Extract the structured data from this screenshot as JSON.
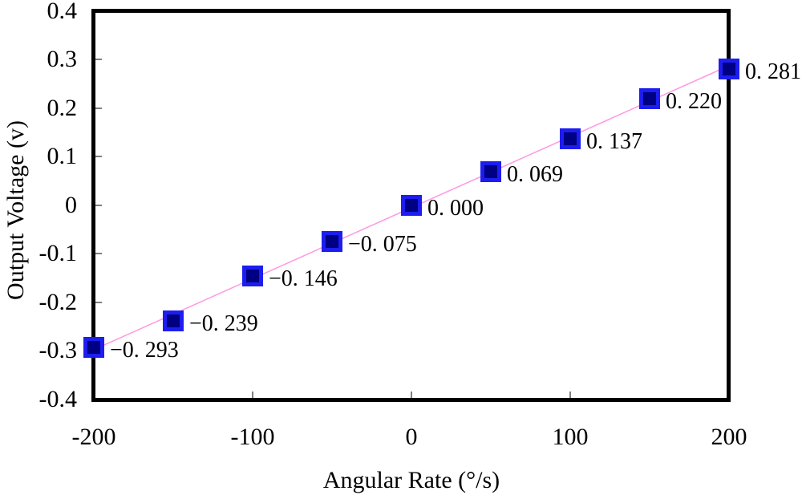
{
  "chart_data": {
    "type": "scatter",
    "title": "",
    "xlabel": "Angular Rate (°/s)",
    "ylabel": "Output Voltage (v)",
    "x": [
      -200,
      -150,
      -100,
      -50,
      0,
      50,
      100,
      150,
      200
    ],
    "y": [
      -0.293,
      -0.239,
      -0.146,
      -0.075,
      0.0,
      0.069,
      0.137,
      0.22,
      0.281
    ],
    "point_labels": [
      "−0. 293",
      "−0. 239",
      "−0. 146",
      "−0. 075",
      "0. 000",
      "0. 069",
      "0. 137",
      "0. 220",
      "0. 281"
    ],
    "xlim": [
      -200,
      200
    ],
    "ylim": [
      -0.4,
      0.4
    ],
    "x_tick_marks": [
      -100,
      0,
      100
    ],
    "y_tick_marks": [
      0.3,
      0.2,
      0.1,
      0,
      -0.1,
      -0.2,
      -0.3
    ],
    "x_tick_label_values": [
      -200,
      -100,
      0,
      100,
      200
    ],
    "x_tick_label_texts": [
      "-200",
      "-100",
      "0",
      "100",
      "200"
    ],
    "y_tick_label_values": [
      0.4,
      0.3,
      0.2,
      0.1,
      0,
      -0.1,
      -0.2,
      -0.3,
      -0.4
    ],
    "y_tick_label_texts": [
      "0.4",
      "0.3",
      "0.2",
      "0.1",
      "0",
      "-0.1",
      "-0.2",
      "-0.3",
      "-0.4"
    ],
    "trendline": {
      "show": true,
      "type": "linear"
    },
    "grid": false,
    "legend_position": "none",
    "colors": {
      "background": "#ffffff",
      "frame": "#000000",
      "tick": "#7f7f7f",
      "text": "#000000",
      "marker_fill": "#000082",
      "marker_border": "#1d1df0",
      "trend_line": "#ff99e2"
    }
  }
}
